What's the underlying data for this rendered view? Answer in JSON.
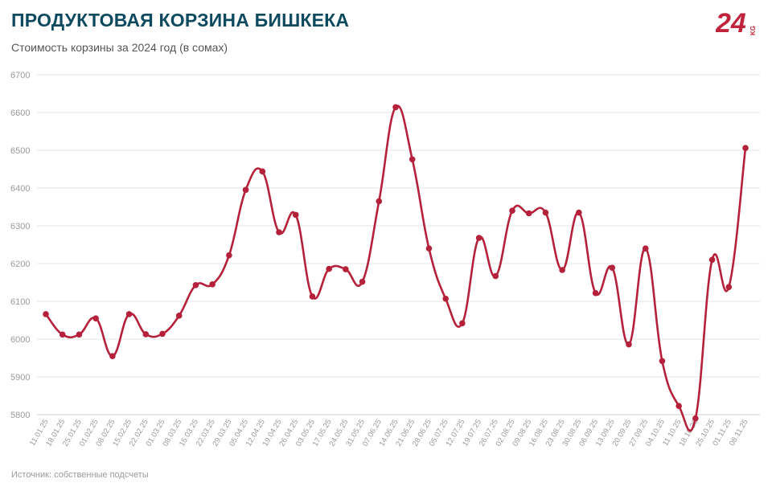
{
  "title": "ПРОДУКТОВАЯ КОРЗИНА БИШКЕКА",
  "subtitle": "Стоимость корзины за 2024 год (в сомах)",
  "source": "Источник: собственные подсчеты",
  "logo": {
    "main": "24",
    "suffix": "KG",
    "color": "#c0243c"
  },
  "colors": {
    "line": "#b5213b",
    "grid": "#e6e6e6",
    "title": "#0e4a5f"
  },
  "chart_data": {
    "type": "line",
    "title": "ПРОДУКТОВАЯ КОРЗИНА БИШКЕКА",
    "subtitle": "Стоимость корзины за 2024 год (в сомах)",
    "xlabel": "",
    "ylabel": "",
    "ylim": [
      5800,
      6700
    ],
    "yticks": [
      5800,
      5900,
      6000,
      6100,
      6200,
      6300,
      6400,
      6500,
      6600,
      6700
    ],
    "grid": true,
    "legend": "none",
    "categories": [
      "11.01.25",
      "18.01.25",
      "25.01.25",
      "01.02.25",
      "08.02.25",
      "15.02.25",
      "22.02.25",
      "01.03.25",
      "08.03.25",
      "15.03.25",
      "22.03.25",
      "29.03.25",
      "05.04.25",
      "12.04.25",
      "19.04.25",
      "26.04.25",
      "03.05.25",
      "17.05.25",
      "24.05.25",
      "31.05.25",
      "07.06.25",
      "14.06.25",
      "21.06.25",
      "28.06.25",
      "05.07.25",
      "12.07.25",
      "19.07.25",
      "26.07.25",
      "02.08.25",
      "09.08.25",
      "16.08.25",
      "23.08.25",
      "30.08.25",
      "06.09.25",
      "13.09.25",
      "20.09.25",
      "27.09.25",
      "04.10.25",
      "11.10.25",
      "18.10.25",
      "25.10.25",
      "01.11.25",
      "08.11.25"
    ],
    "series": [
      {
        "values": [
          6066,
          6012,
          6012,
          6055,
          5955,
          6066,
          6013,
          6014,
          6062,
          6143,
          6145,
          6222,
          6395,
          6444,
          6283,
          6329,
          6113,
          6186,
          6185,
          6152,
          6365,
          6614,
          6476,
          6240,
          6107,
          6042,
          6268,
          6167,
          6340,
          6333,
          6335,
          6183,
          6335,
          6122,
          6189,
          5986,
          6240,
          5942,
          5823,
          5790,
          6210,
          6138,
          6506
        ]
      }
    ]
  }
}
